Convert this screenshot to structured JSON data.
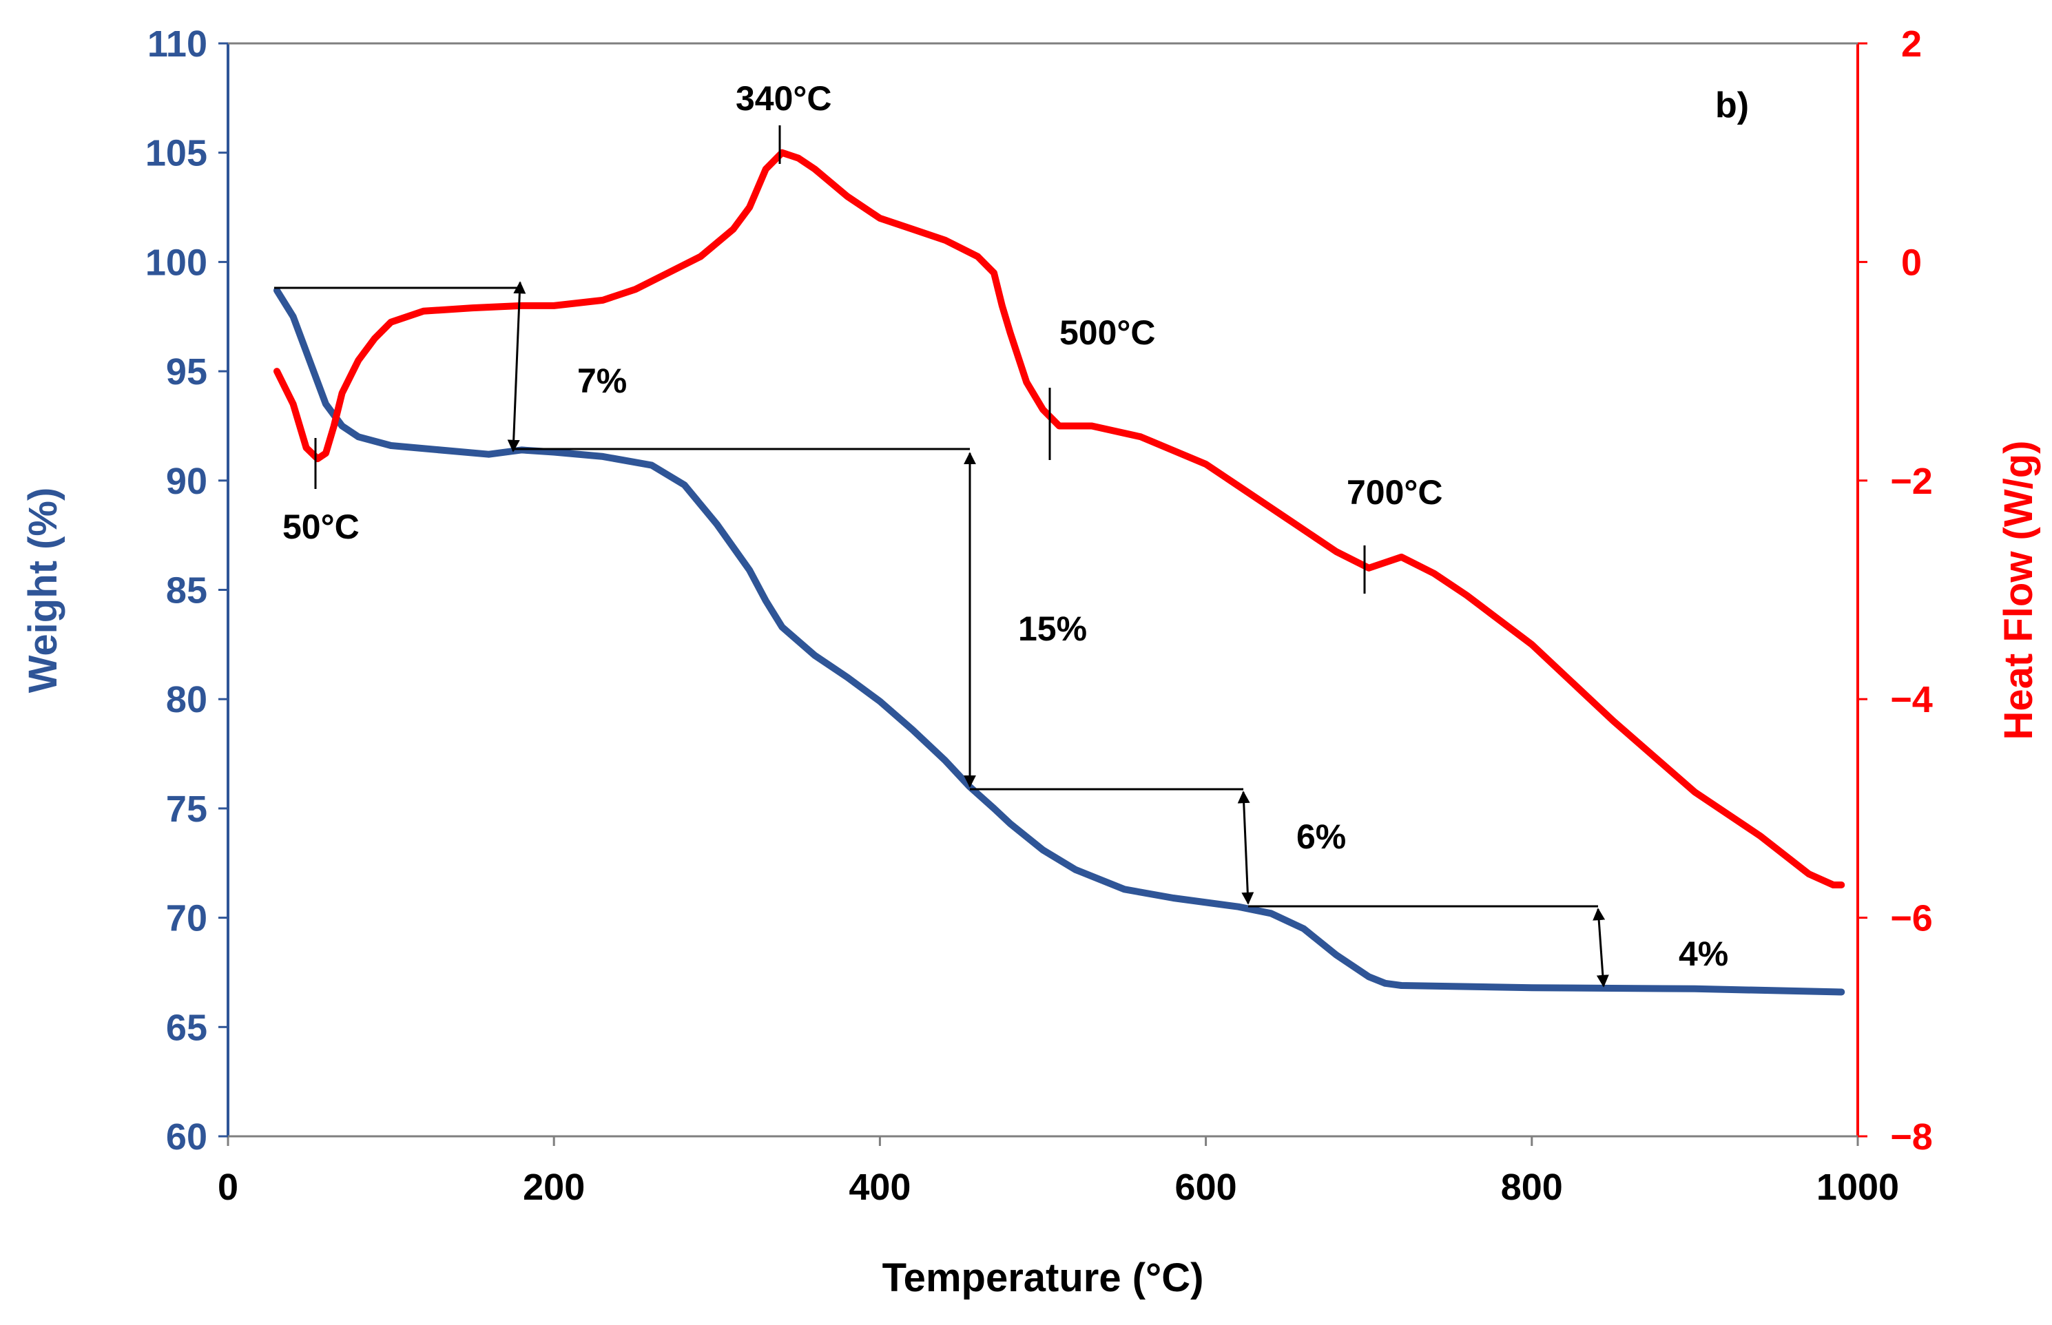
{
  "chart_data": {
    "type": "line",
    "panel_label": "b)",
    "xlabel": "Temperature (°C)",
    "ylabel_left": "Weight (%)",
    "ylabel_right": "Heat Flow (W/g)",
    "xlim": [
      0,
      1000
    ],
    "ylim_left": [
      60,
      110
    ],
    "ylim_right": [
      -8,
      2
    ],
    "x_ticks": [
      0,
      200,
      400,
      600,
      800,
      1000
    ],
    "y_left_ticks": [
      60,
      65,
      70,
      75,
      80,
      85,
      90,
      95,
      100,
      105,
      110
    ],
    "y_right_ticks": [
      -8,
      -6,
      -4,
      -2,
      0,
      2
    ],
    "y_right_tick_labels": [
      "−8",
      "−6",
      "−4",
      "−2",
      "0",
      "2"
    ],
    "grid": false,
    "legend": "none",
    "colors": {
      "weight": "#2f5597",
      "heat_flow": "#ff0000",
      "annotation": "#000000"
    },
    "series": [
      {
        "axis": "left",
        "x": [
          30,
          40,
          50,
          60,
          70,
          80,
          100,
          130,
          160,
          180,
          200,
          230,
          260,
          280,
          300,
          320,
          330,
          340,
          360,
          380,
          400,
          420,
          440,
          455,
          470,
          480,
          500,
          520,
          550,
          580,
          620,
          640,
          660,
          680,
          700,
          710,
          720,
          800,
          900,
          990
        ],
        "y": [
          98.7,
          97.5,
          95.5,
          93.5,
          92.5,
          92.0,
          91.6,
          91.4,
          91.2,
          91.4,
          91.3,
          91.1,
          90.7,
          89.8,
          88.0,
          85.9,
          84.5,
          83.3,
          82.0,
          81.0,
          79.9,
          78.6,
          77.2,
          76.0,
          75.0,
          74.3,
          73.1,
          72.2,
          71.3,
          70.9,
          70.5,
          70.2,
          69.5,
          68.3,
          67.3,
          67.0,
          66.9,
          66.8,
          66.75,
          66.6
        ]
      },
      {
        "axis": "right",
        "x": [
          30,
          40,
          48,
          55,
          60,
          65,
          70,
          80,
          90,
          100,
          120,
          150,
          180,
          200,
          230,
          250,
          270,
          290,
          310,
          320,
          330,
          340,
          350,
          360,
          380,
          400,
          420,
          440,
          460,
          470,
          475,
          480,
          490,
          500,
          510,
          530,
          560,
          600,
          620,
          650,
          680,
          700,
          710,
          720,
          740,
          760,
          800,
          850,
          900,
          940,
          970,
          985,
          990
        ],
        "y": [
          -1.0,
          -1.3,
          -1.7,
          -1.8,
          -1.75,
          -1.5,
          -1.2,
          -0.9,
          -0.7,
          -0.55,
          -0.45,
          -0.42,
          -0.4,
          -0.4,
          -0.35,
          -0.25,
          -0.1,
          0.05,
          0.3,
          0.5,
          0.85,
          1.0,
          0.95,
          0.85,
          0.6,
          0.4,
          0.3,
          0.2,
          0.05,
          -0.1,
          -0.4,
          -0.65,
          -1.1,
          -1.35,
          -1.5,
          -1.5,
          -1.6,
          -1.85,
          -2.05,
          -2.35,
          -2.65,
          -2.8,
          -2.75,
          -2.7,
          -2.85,
          -3.05,
          -3.5,
          -4.2,
          -4.85,
          -5.25,
          -5.6,
          -5.7,
          -5.7
        ]
      }
    ],
    "annotations": {
      "temperatures": [
        "50°C",
        "340°C",
        "500°C",
        "700°C"
      ],
      "mass_losses": [
        "7%",
        "15%",
        "6%",
        "4%"
      ]
    }
  }
}
